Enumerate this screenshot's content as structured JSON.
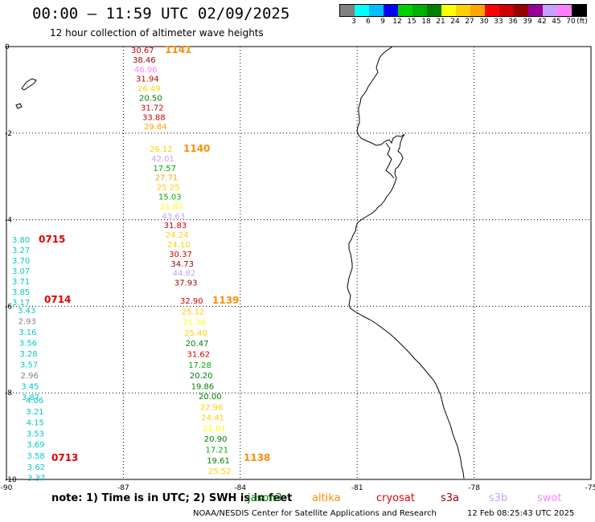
{
  "title": "00:00 – 11:59 UTC 02/09/2025",
  "subtitle": "12 hour collection of altimeter wave heights",
  "legend": {
    "colors": [
      "#808080",
      "#00ffff",
      "#00bfff",
      "#0000ff",
      "#00d000",
      "#00b000",
      "#008000",
      "#ffff00",
      "#ffd000",
      "#ffa500",
      "#ff0000",
      "#cc0000",
      "#990000",
      "#990099",
      "#c8a0ff",
      "#ff80ff",
      "#000000"
    ],
    "ticks": [
      "3",
      "6",
      "9",
      "12",
      "15",
      "18",
      "21",
      "24",
      "27",
      "30",
      "33",
      "36",
      "39",
      "42",
      "45",
      "70",
      "(ft)"
    ]
  },
  "map": {
    "lon_ticks": [
      "-90",
      "-87",
      "-84",
      "-81",
      "-78",
      "-75"
    ],
    "lat_ticks": [
      "0",
      "-2",
      "-4",
      "-6",
      "-8",
      "-10"
    ],
    "grid_color": "#000000",
    "coast_color": "#000000"
  },
  "tracks": [
    {
      "pass": "1141",
      "pass_color": "#ff8c00",
      "obs": [
        {
          "t": "30.67",
          "c": "#cc0000"
        },
        {
          "t": "38.46",
          "c": "#990000"
        },
        {
          "t": "46.96",
          "c": "#ff80ff"
        },
        {
          "t": "31.94",
          "c": "#cc0000"
        },
        {
          "t": "26.49",
          "c": "#ffd000"
        },
        {
          "t": "20.50",
          "c": "#008000"
        },
        {
          "t": "31.72",
          "c": "#cc0000"
        },
        {
          "t": "33.88",
          "c": "#cc0000"
        },
        {
          "t": "29.84",
          "c": "#ffa500"
        }
      ]
    },
    {
      "pass": "1140",
      "pass_color": "#ff8c00",
      "obs": [
        {
          "t": "26.12",
          "c": "#ffd000"
        },
        {
          "t": "42.01",
          "c": "#c8a0ff"
        },
        {
          "t": "17.57",
          "c": "#00b000"
        },
        {
          "t": "27.71",
          "c": "#ffa500"
        },
        {
          "t": "25.25",
          "c": "#ffd000"
        },
        {
          "t": "15.03",
          "c": "#00b000"
        },
        {
          "t": "21.87",
          "c": "#ffff00"
        },
        {
          "t": "43.63",
          "c": "#c8a0ff"
        },
        {
          "t": "31.83",
          "c": "#cc0000"
        },
        {
          "t": "24.24",
          "c": "#ffd000"
        },
        {
          "t": "24.10",
          "c": "#ffd000"
        },
        {
          "t": "30.37",
          "c": "#cc0000"
        },
        {
          "t": "34.73",
          "c": "#990000"
        },
        {
          "t": "44.82",
          "c": "#c8a0ff"
        },
        {
          "t": "37.93",
          "c": "#990000"
        }
      ]
    },
    {
      "pass": "1139",
      "pass_color": "#ff8c00",
      "obs": [
        {
          "t": "32.90",
          "c": "#cc0000"
        },
        {
          "t": "25.12",
          "c": "#ffd000"
        },
        {
          "t": "21.34",
          "c": "#ffff00"
        },
        {
          "t": "25.40",
          "c": "#ffd000"
        },
        {
          "t": "20.47",
          "c": "#008000"
        },
        {
          "t": "31.62",
          "c": "#cc0000"
        },
        {
          "t": "17.28",
          "c": "#00b000"
        },
        {
          "t": "20.20",
          "c": "#008000"
        },
        {
          "t": "19.86",
          "c": "#008000"
        }
      ]
    },
    {
      "pass": "1138",
      "pass_color": "#ff8c00",
      "obs": [
        {
          "t": "20.00",
          "c": "#008000"
        },
        {
          "t": "22.96",
          "c": "#ffd000"
        },
        {
          "t": "24.41",
          "c": "#ffd000"
        },
        {
          "t": "21.01",
          "c": "#ffff00"
        },
        {
          "t": "20.90",
          "c": "#008000"
        },
        {
          "t": "17.21",
          "c": "#00b000"
        },
        {
          "t": "19.61",
          "c": "#008000"
        },
        {
          "t": "25.52",
          "c": "#ffd000"
        }
      ]
    },
    {
      "pass": "0715",
      "pass_color": "#e00000",
      "obs": [
        {
          "t": "3.80",
          "c": "#00c8c8"
        },
        {
          "t": "3.27",
          "c": "#00c8c8"
        },
        {
          "t": "3.70",
          "c": "#00c8c8"
        },
        {
          "t": "3.07",
          "c": "#00c8c8"
        },
        {
          "t": "3.71",
          "c": "#00c8c8"
        },
        {
          "t": "3.85",
          "c": "#00c8c8"
        },
        {
          "t": "3.17",
          "c": "#00c8c8"
        }
      ]
    },
    {
      "pass": "0714",
      "pass_color": "#e00000",
      "obs": [
        {
          "t": "3.43",
          "c": "#00c8c8"
        },
        {
          "t": "2.93",
          "c": "#808080"
        },
        {
          "t": "3.16",
          "c": "#00c8c8"
        },
        {
          "t": "3.56",
          "c": "#00c8c8"
        },
        {
          "t": "3.28",
          "c": "#00c8c8"
        },
        {
          "t": "3.57",
          "c": "#00c8c8"
        },
        {
          "t": "2.96",
          "c": "#808080"
        },
        {
          "t": "3.45",
          "c": "#00c8c8"
        },
        {
          "t": "3.87",
          "c": "#00c8c8"
        }
      ]
    },
    {
      "pass": "0713",
      "pass_color": "#e00000",
      "obs": [
        {
          "t": "4.06",
          "c": "#00c8c8"
        },
        {
          "t": "3.21",
          "c": "#00c8c8"
        },
        {
          "t": "4.15",
          "c": "#00c8c8"
        },
        {
          "t": "3.53",
          "c": "#00c8c8"
        },
        {
          "t": "3.69",
          "c": "#00c8c8"
        },
        {
          "t": "3.58",
          "c": "#00c8c8"
        },
        {
          "t": "3.62",
          "c": "#00c8c8"
        },
        {
          "t": "3.37",
          "c": "#00c8c8"
        }
      ]
    }
  ],
  "note": "note:  1) Time is in UTC; 2) SWH is in feet",
  "satellites": [
    {
      "name": "jason3",
      "color": "#008000"
    },
    {
      "name": "altika",
      "color": "#ff8c00"
    },
    {
      "name": "cryosat",
      "color": "#e00000"
    },
    {
      "name": "s3a",
      "color": "#990000"
    },
    {
      "name": "s3b",
      "color": "#c8a0ff"
    },
    {
      "name": "swot",
      "color": "#ff80ff"
    }
  ],
  "credit": "NOAA/NESDIS Center for Satellite Applications and Research",
  "timestamp": "12 Feb 08:25:43 UTC 2025"
}
